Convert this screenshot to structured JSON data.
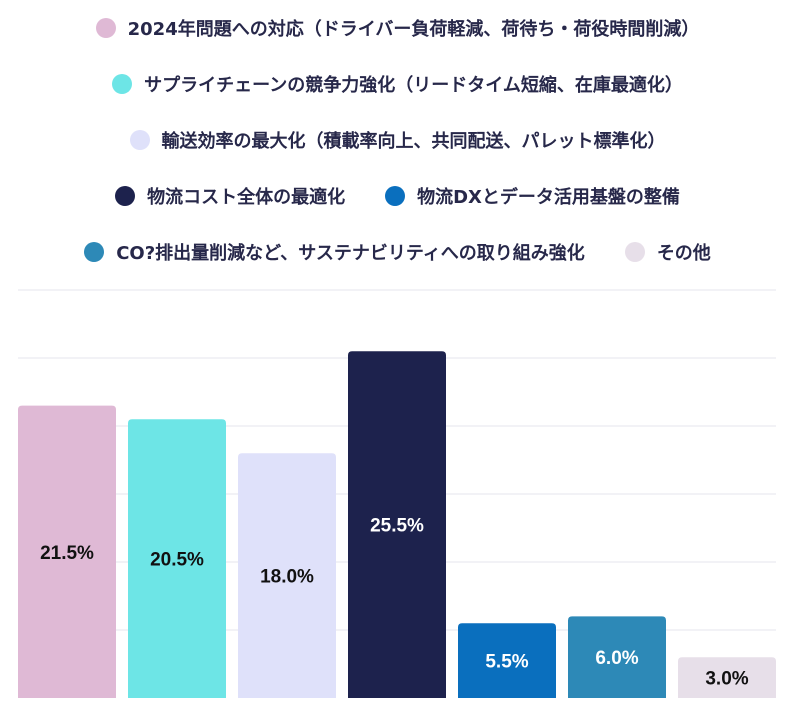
{
  "chart_data": {
    "type": "bar",
    "categories": [
      "2024年問題への対応（ドライバー負荷軽減、荷待ち・荷役時間削減）",
      "サプライチェーンの競争力強化（リードタイム短縮、在庫最適化）",
      "輸送効率の最大化（積載率向上、共同配送、パレット標準化）",
      "物流コスト全体の最適化",
      "物流DXとデータ活用基盤の整備",
      "CO?排出量削減など、サステナビリティへの取り組み強化",
      "その他"
    ],
    "values": [
      21.5,
      20.5,
      18.0,
      25.5,
      5.5,
      6.0,
      3.0
    ],
    "value_labels": [
      "21.5%",
      "20.5%",
      "18.0%",
      "25.5%",
      "5.5%",
      "6.0%",
      "3.0%"
    ],
    "colors": [
      "#dfb9d5",
      "#6de5e6",
      "#dfe1fa",
      "#1d224d",
      "#0a6fbe",
      "#2d89b7",
      "#e7dfe9"
    ],
    "label_colors": [
      "#111111",
      "#111111",
      "#111111",
      "#ffffff",
      "#ffffff",
      "#ffffff",
      "#111111"
    ],
    "ylim": [
      0,
      30
    ],
    "grid": true,
    "legend_position": "top"
  }
}
